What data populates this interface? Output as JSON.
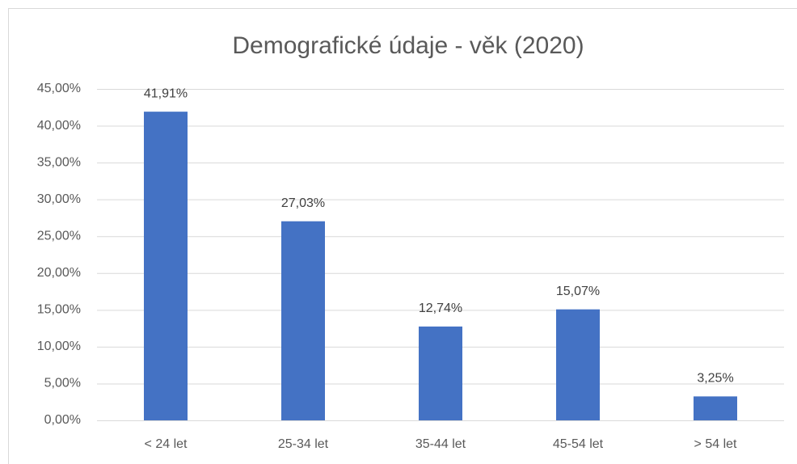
{
  "chart_data": {
    "type": "bar",
    "title": "Demografické údaje - věk (2020)",
    "categories": [
      "< 24 let",
      "25-34 let",
      "35-44 let",
      "45-54 let",
      "> 54 let"
    ],
    "values": [
      41.91,
      27.03,
      12.74,
      15.07,
      3.25
    ],
    "value_labels": [
      "41,91%",
      "27,03%",
      "12,74%",
      "15,07%",
      "3,25%"
    ],
    "color": "#4472c4",
    "ylim": [
      0,
      45
    ],
    "yticks": [
      {
        "value": 0,
        "label": "0,00%"
      },
      {
        "value": 5,
        "label": "5,00%"
      },
      {
        "value": 10,
        "label": "10,00%"
      },
      {
        "value": 15,
        "label": "15,00%"
      },
      {
        "value": 20,
        "label": "20,00%"
      },
      {
        "value": 25,
        "label": "25,00%"
      },
      {
        "value": 30,
        "label": "30,00%"
      },
      {
        "value": 35,
        "label": "35,00%"
      },
      {
        "value": 40,
        "label": "40,00%"
      },
      {
        "value": 45,
        "label": "45,00%"
      }
    ],
    "grid": true
  }
}
